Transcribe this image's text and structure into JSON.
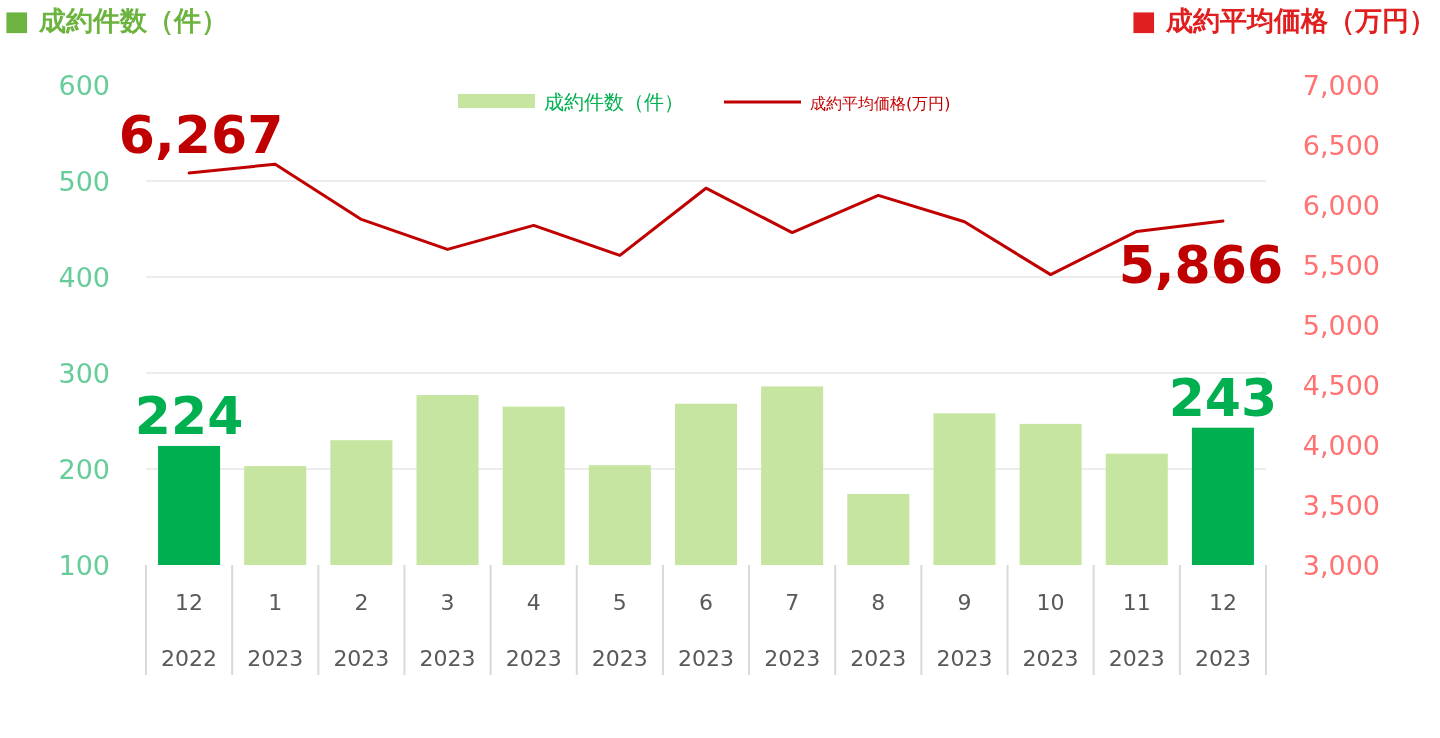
{
  "chart_data": {
    "type": "bar",
    "categories": [
      "12\n2022",
      "1\n2023",
      "2\n2023",
      "3\n2023",
      "4\n2023",
      "5\n2023",
      "6\n2023",
      "7\n2023",
      "8\n2023",
      "9\n2023",
      "10\n2023",
      "11\n2023",
      "12\n2023"
    ],
    "ylabel": "■ 成約件数（件）",
    "y2label": "■ 成約平均価格（万円）",
    "ylim": [
      100,
      600
    ],
    "yticks": [
      100,
      200,
      300,
      400,
      500,
      600
    ],
    "y2lim": [
      3000,
      7000
    ],
    "y2ticks": [
      {
        "value": 3000,
        "label": "3,000"
      },
      {
        "value": 3500,
        "label": "3,500"
      },
      {
        "value": 4000,
        "label": "4,000"
      },
      {
        "value": 4500,
        "label": "4,500"
      },
      {
        "value": 5000,
        "label": "5,000"
      },
      {
        "value": 5500,
        "label": "5,500"
      },
      {
        "value": 6000,
        "label": "6,000"
      },
      {
        "value": 6500,
        "label": "6,500"
      },
      {
        "value": 7000,
        "label": "7,000"
      }
    ],
    "grid": "y",
    "legend": "top",
    "series": [
      {
        "name": "成約件数（件）",
        "color": "#c5e5a0",
        "colors": [
          "#00b050",
          "#c5e5a0",
          "#c5e5a0",
          "#c5e5a0",
          "#c5e5a0",
          "#c5e5a0",
          "#c5e5a0",
          "#c5e5a0",
          "#c5e5a0",
          "#c5e5a0",
          "#c5e5a0",
          "#c5e5a0",
          "#00b050"
        ],
        "values": [
          224,
          203,
          230,
          277,
          265,
          204,
          268,
          286,
          174,
          258,
          247,
          216,
          243
        ],
        "value_labels": [
          "224",
          null,
          null,
          null,
          null,
          null,
          null,
          null,
          null,
          null,
          null,
          null,
          "243"
        ]
      },
      {
        "name": "成約平均価格(万円)",
        "type": "line",
        "axis": "y2",
        "color": "#c00000",
        "values": [
          6267,
          6340,
          5880,
          5630,
          5830,
          5580,
          6140,
          5770,
          6080,
          5860,
          5420,
          5780,
          5866
        ],
        "value_labels": [
          "6,267",
          null,
          null,
          null,
          null,
          null,
          null,
          null,
          null,
          null,
          null,
          null,
          "5,866"
        ]
      }
    ]
  }
}
